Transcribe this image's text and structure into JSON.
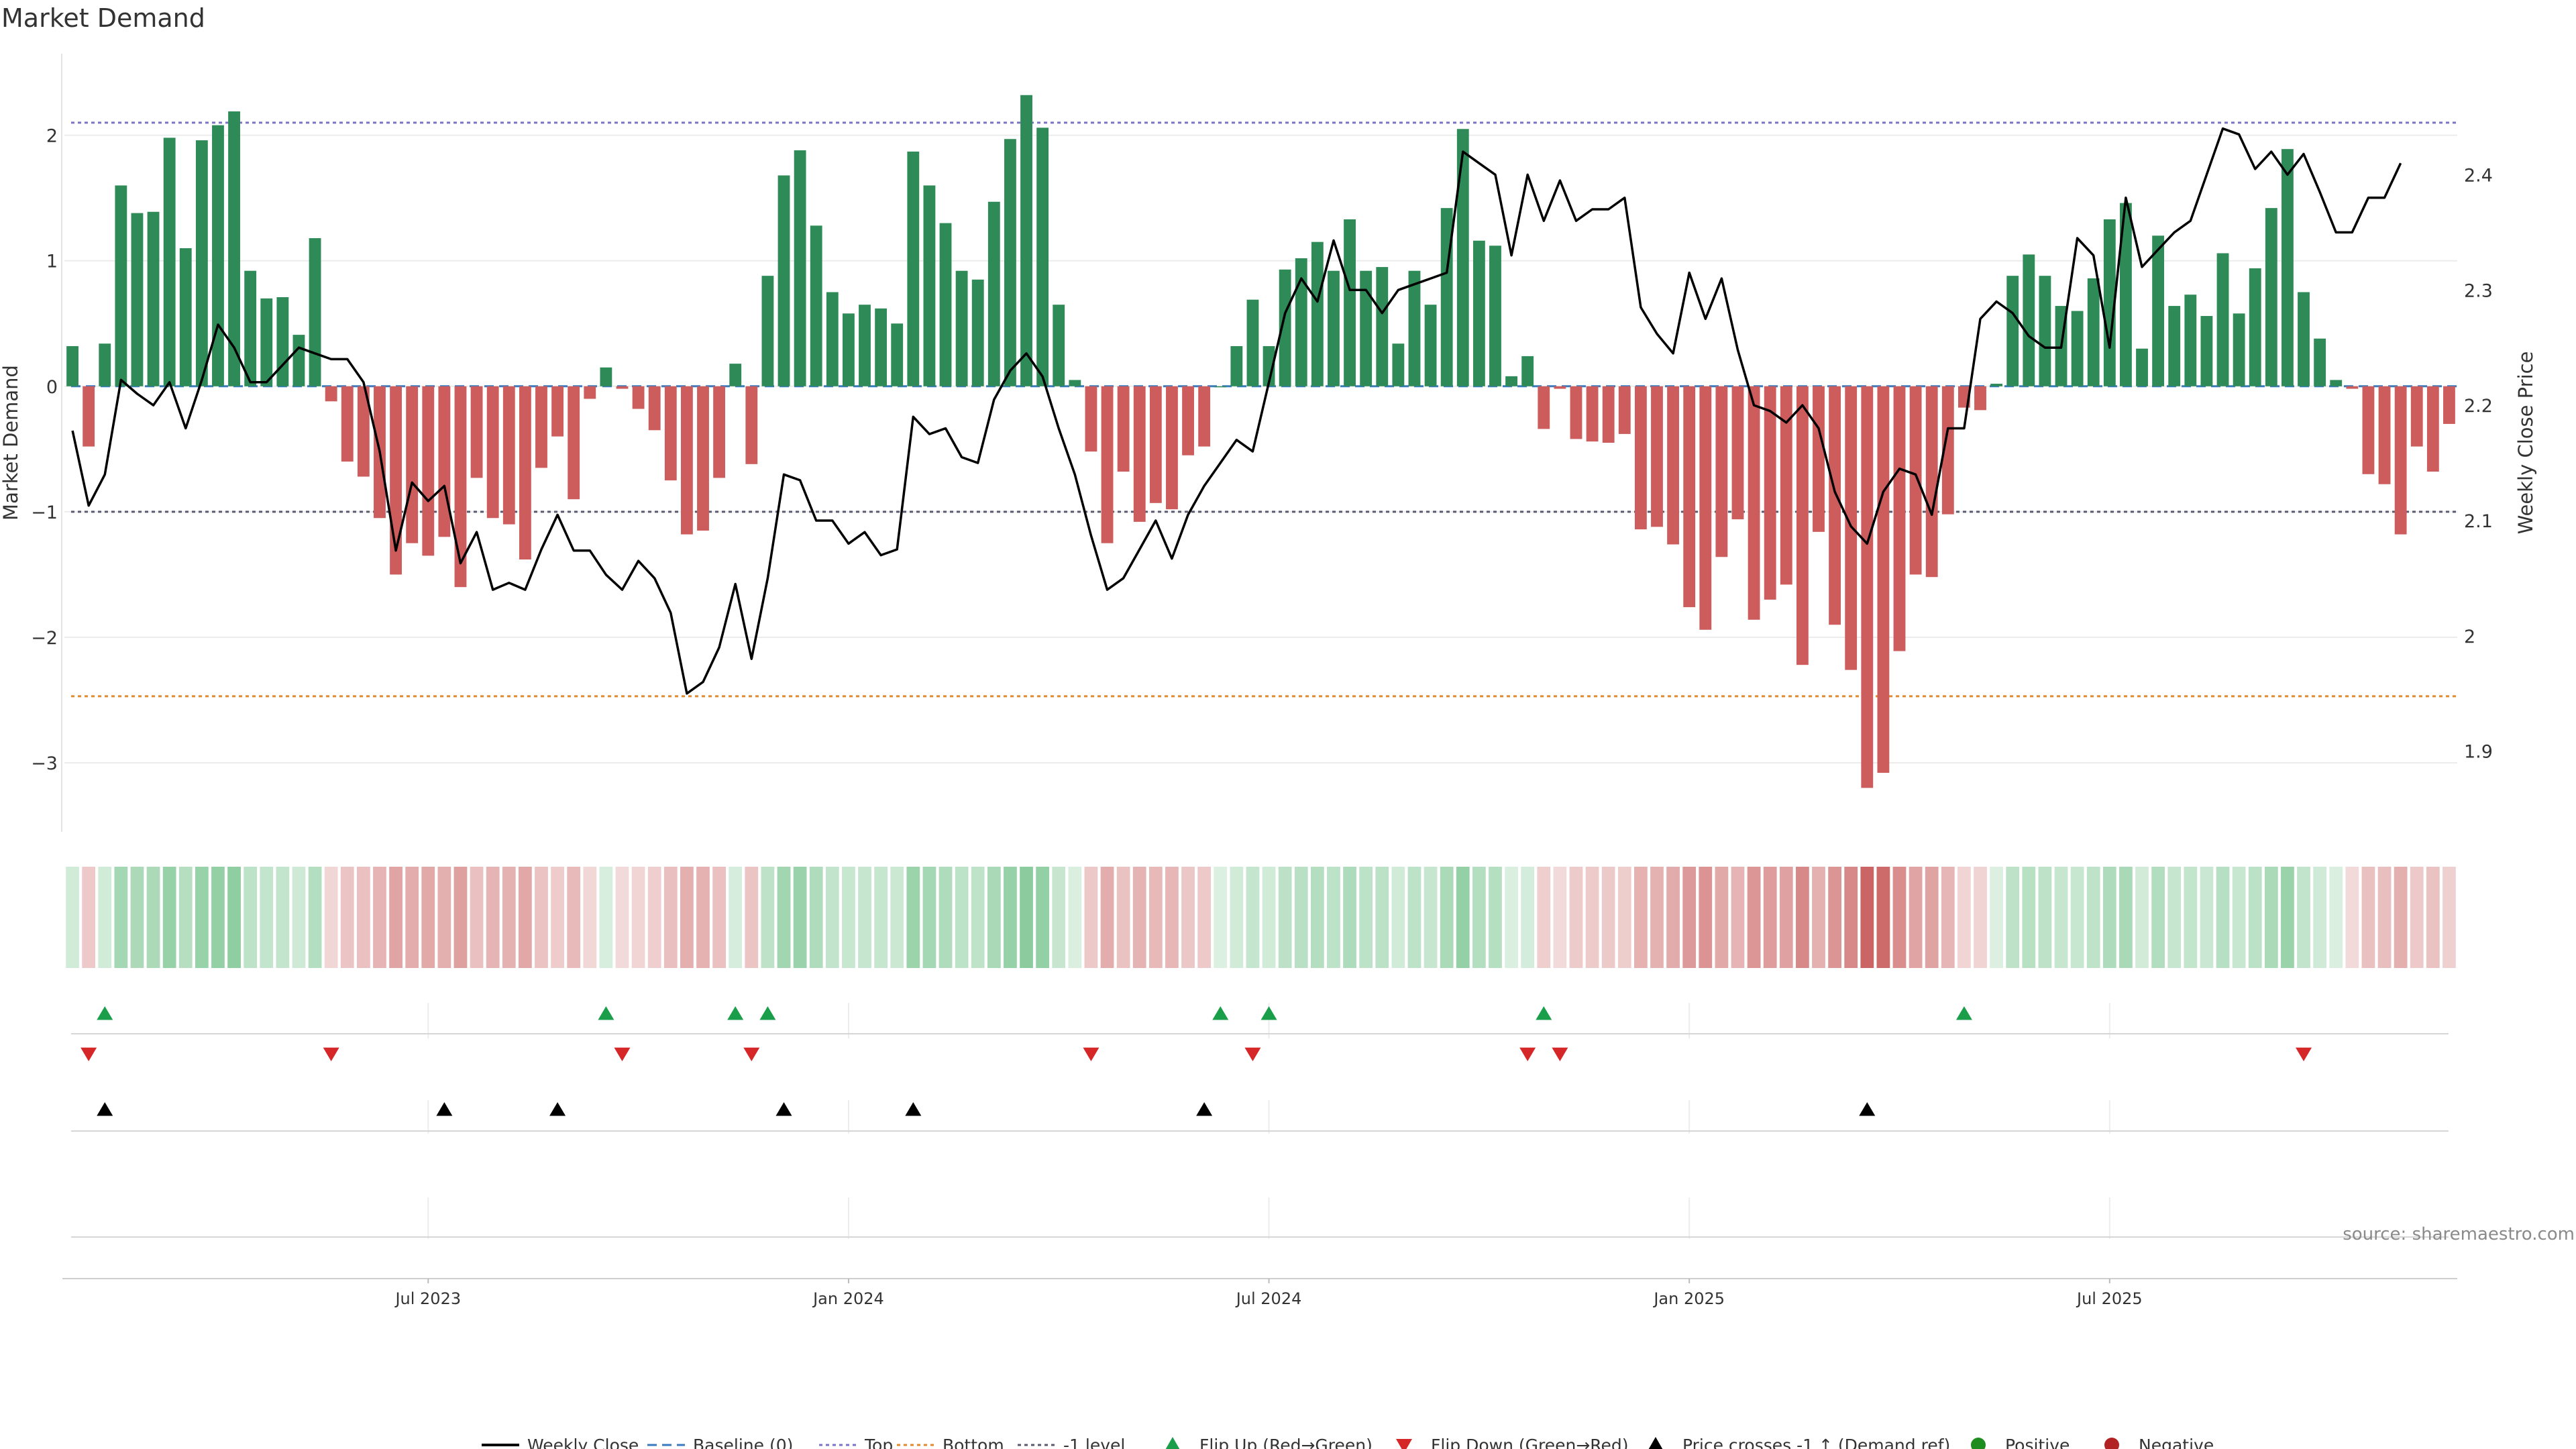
{
  "chart_data": {
    "type": "bar",
    "title": "Market Demand",
    "ylabel": "Market Demand",
    "y2label": "Weekly Close Price",
    "ylim": [
      -3.55,
      2.65
    ],
    "y2lim": [
      1.83,
      2.505
    ],
    "yticks": [
      2,
      1,
      0,
      -1,
      -2,
      -3
    ],
    "ytick_labels": [
      "2",
      "1",
      "0",
      "−1",
      "−2",
      "−3"
    ],
    "y2ticks": [
      2.4,
      2.3,
      2.2,
      2.1,
      2.0,
      1.9
    ],
    "y2tick_labels": [
      "2.4",
      "2.3",
      "2.2",
      "2.1",
      "2",
      "1.9"
    ],
    "xticks": [
      {
        "label": "Jul 2023",
        "index": 22
      },
      {
        "label": "Jan 2024",
        "index": 48
      },
      {
        "label": "Jul 2024",
        "index": 74
      },
      {
        "label": "Jan 2025",
        "index": 100
      },
      {
        "label": "Jul 2025",
        "index": 126
      }
    ],
    "levels": {
      "top": 2.1,
      "bottom": -2.47,
      "minus_one": -1,
      "baseline": 0
    },
    "demand": [
      0.32,
      -0.48,
      0.34,
      1.6,
      1.38,
      1.39,
      1.98,
      1.1,
      1.96,
      2.08,
      2.19,
      0.92,
      0.7,
      0.71,
      0.41,
      1.18,
      -0.12,
      -0.6,
      -0.72,
      -1.05,
      -1.5,
      -1.25,
      -1.35,
      -1.2,
      -1.6,
      -0.73,
      -1.05,
      -1.1,
      -1.38,
      -0.65,
      -0.4,
      -0.9,
      -0.1,
      0.15,
      -0.02,
      -0.18,
      -0.35,
      -0.75,
      -1.18,
      -1.15,
      -0.73,
      0.18,
      -0.62,
      0.88,
      1.68,
      1.88,
      1.28,
      0.75,
      0.58,
      0.65,
      0.62,
      0.5,
      1.87,
      1.6,
      1.3,
      0.92,
      0.85,
      1.47,
      1.97,
      2.32,
      2.06,
      0.65,
      0.05,
      -0.52,
      -1.25,
      -0.68,
      -1.08,
      -0.93,
      -0.98,
      -0.55,
      -0.48,
      0,
      0.32,
      0.69,
      0.32,
      0.93,
      1.02,
      1.15,
      0.92,
      1.33,
      0.92,
      0.95,
      0.34,
      0.92,
      0.65,
      1.42,
      2.05,
      1.16,
      1.12,
      0.08,
      0.24,
      -0.34,
      -0.02,
      -0.42,
      -0.44,
      -0.45,
      -0.38,
      -1.14,
      -1.12,
      -1.26,
      -1.76,
      -1.94,
      -1.36,
      -1.06,
      -1.86,
      -1.7,
      -1.58,
      -2.22,
      -1.16,
      -1.9,
      -2.26,
      -3.2,
      -3.08,
      -2.11,
      -1.5,
      -1.52,
      -1.02,
      -0.17,
      -0.19,
      0.02,
      0.88,
      1.05,
      0.88,
      0.64,
      0.6,
      0.86,
      1.33,
      1.46,
      0.3,
      1.2,
      0.64,
      0.73,
      0.56,
      1.06,
      0.58,
      0.94,
      1.42,
      1.89,
      0.75,
      0.38,
      0.05,
      -0.02,
      -0.7,
      -0.78,
      -1.18,
      -0.48,
      -0.68,
      -0.3
    ],
    "close": [
      2.178,
      2.113,
      2.14,
      2.222,
      2.21,
      2.2,
      2.22,
      2.18,
      2.222,
      2.27,
      2.25,
      2.22,
      2.22,
      2.235,
      2.25,
      2.245,
      2.24,
      2.24,
      2.22,
      2.16,
      2.074,
      2.133,
      2.117,
      2.13,
      2.063,
      2.09,
      2.04,
      2.046,
      2.04,
      2.075,
      2.105,
      2.074,
      2.074,
      2.053,
      2.04,
      2.065,
      2.05,
      2.02,
      1.95,
      1.96,
      1.99,
      2.045,
      1.98,
      2.05,
      2.14,
      2.135,
      2.1,
      2.1,
      2.08,
      2.09,
      2.07,
      2.075,
      2.19,
      2.175,
      2.18,
      2.155,
      2.15,
      2.205,
      2.23,
      2.245,
      2.225,
      2.18,
      2.14,
      2.087,
      2.04,
      2.05,
      2.075,
      2.1,
      2.067,
      2.105,
      2.13,
      2.15,
      2.17,
      2.16,
      2.22,
      2.28,
      2.31,
      2.29,
      2.343,
      2.3,
      2.3,
      2.28,
      2.3,
      2.305,
      2.31,
      2.315,
      2.42,
      2.41,
      2.4,
      2.33,
      2.4,
      2.36,
      2.395,
      2.36,
      2.37,
      2.37,
      2.38,
      2.285,
      2.262,
      2.245,
      2.315,
      2.275,
      2.31,
      2.248,
      2.2,
      2.195,
      2.185,
      2.2,
      2.18,
      2.125,
      2.095,
      2.08,
      2.125,
      2.145,
      2.14,
      2.105,
      2.18,
      2.18,
      2.275,
      2.29,
      2.28,
      2.26,
      2.25,
      2.25,
      2.345,
      2.33,
      2.25,
      2.38,
      2.32,
      2.335,
      2.35,
      2.36,
      2.4,
      2.44,
      2.435,
      2.405,
      2.42,
      2.4,
      2.418,
      2.385,
      2.35,
      2.35,
      2.38,
      2.38,
      2.41
    ],
    "flip_up": [
      2,
      33,
      41,
      43,
      71,
      74,
      91,
      117
    ],
    "flip_down": [
      1,
      16,
      34,
      42,
      63,
      73,
      90,
      92,
      138
    ],
    "price_cross": [
      2,
      23,
      30,
      44,
      52,
      70,
      111
    ],
    "colors": {
      "positive_bar": "#2e8b57",
      "negative_bar": "#cd5c5c",
      "close_line": "#000000",
      "baseline": "#3a7bbf",
      "top": "#7b73c6",
      "bottom": "#e08a2e",
      "minus_one": "#5a5a6e",
      "flip_up": "#1a9e4a",
      "flip_down": "#d62728",
      "price_cross": "#000000",
      "positive_dot": "#1e8c1e",
      "negative_dot": "#b22222"
    },
    "legend": {
      "position": "bottom-center",
      "entries": [
        {
          "label": "Weekly Close",
          "kind": "line-solid",
          "color": "close_line"
        },
        {
          "label": "Baseline (0)",
          "kind": "line-dashed",
          "color": "baseline"
        },
        {
          "label": "Top",
          "kind": "line-dotted",
          "color": "top"
        },
        {
          "label": "Bottom",
          "kind": "line-dotted",
          "color": "bottom"
        },
        {
          "label": "-1 level",
          "kind": "line-dotted",
          "color": "minus_one"
        },
        {
          "label": "Flip Up (Red→Green)",
          "kind": "tri-up",
          "color": "flip_up"
        },
        {
          "label": "Flip Down (Green→Red)",
          "kind": "tri-down",
          "color": "flip_down"
        },
        {
          "label": "Price crosses -1 ↑ (Demand ref)",
          "kind": "tri-up",
          "color": "price_cross"
        },
        {
          "label": "Positive",
          "kind": "dot",
          "color": "positive_dot"
        },
        {
          "label": "Negative",
          "kind": "dot",
          "color": "negative_dot"
        }
      ]
    },
    "source": "source: sharemaestro.com"
  }
}
